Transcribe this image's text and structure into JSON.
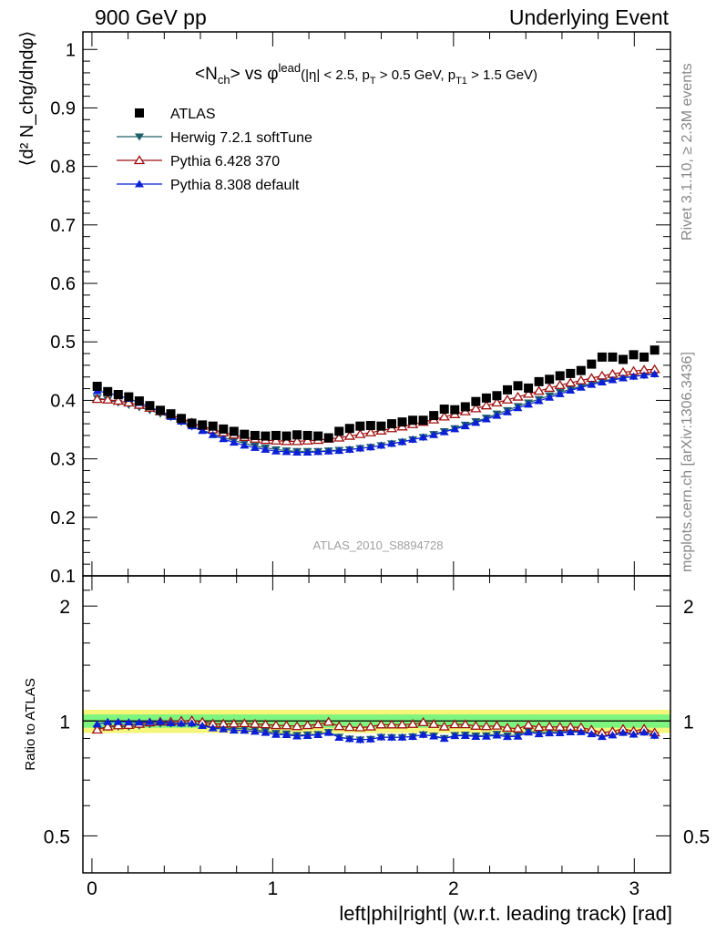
{
  "header": {
    "left": "900 GeV pp",
    "right": "Underlying Event"
  },
  "side_labels": {
    "rivet": "Rivet 3.1.10, ≥ 2.3M events",
    "mcplots": "mcplots.cern.ch [arXiv:1306.3436]"
  },
  "watermark": "ATLAS_2010_S8894728",
  "title": {
    "main": "<N",
    "sub_ch": "ch",
    "vs": "> vs φ",
    "sup_lead": "lead",
    "cuts": "(|η| < 2.5, p",
    "sub_T": "T",
    "cuts2": " > 0.5 GeV, p",
    "sub_T1": "T1",
    "cuts3": " > 1.5 GeV)"
  },
  "ylabel_main": "⟨d² N_chg/dηdφ⟩",
  "ylabel_ratio": "Ratio to ATLAS",
  "xlabel": "left|phi|right| (w.r.t. leading track) [rad]",
  "colors": {
    "atlas": "#000000",
    "herwig": "#1f5f6a",
    "pythia6": "#a01010",
    "pythia8": "#0a1fd6",
    "band_inner": "#7ef57e",
    "band_outer": "#f5f57a"
  },
  "chart_data": [
    {
      "type": "scatter",
      "panel": "main",
      "xlim": [
        -0.05,
        3.2
      ],
      "ylim": [
        0.1,
        1.03
      ],
      "yticks": [
        0.1,
        0.2,
        0.3,
        0.4,
        0.5,
        0.6,
        0.7,
        0.8,
        0.9,
        1
      ],
      "ytick_labels": [
        "0.1",
        "0.2",
        "0.3",
        "0.4",
        "0.5",
        "0.6",
        "0.7",
        "0.8",
        "0.9",
        "1"
      ],
      "legend": "top-left",
      "series": [
        {
          "name": "ATLAS",
          "marker": "square",
          "values": [
            0.424,
            0.415,
            0.41,
            0.406,
            0.399,
            0.391,
            0.383,
            0.377,
            0.369,
            0.361,
            0.358,
            0.356,
            0.351,
            0.347,
            0.342,
            0.34,
            0.339,
            0.34,
            0.339,
            0.341,
            0.34,
            0.339,
            0.336,
            0.347,
            0.352,
            0.356,
            0.357,
            0.356,
            0.36,
            0.363,
            0.366,
            0.366,
            0.374,
            0.385,
            0.384,
            0.389,
            0.398,
            0.404,
            0.408,
            0.418,
            0.425,
            0.421,
            0.432,
            0.436,
            0.442,
            0.446,
            0.451,
            0.462,
            0.474,
            0.474,
            0.47,
            0.478,
            0.474,
            0.486
          ]
        },
        {
          "name": "Herwig 7.2.1 softTune",
          "marker": "triangle-down",
          "values": [
            0.404,
            0.401,
            0.396,
            0.392,
            0.388,
            0.383,
            0.377,
            0.371,
            0.363,
            0.355,
            0.349,
            0.343,
            0.337,
            0.331,
            0.327,
            0.322,
            0.319,
            0.316,
            0.314,
            0.313,
            0.313,
            0.313,
            0.314,
            0.315,
            0.316,
            0.318,
            0.32,
            0.323,
            0.326,
            0.329,
            0.333,
            0.337,
            0.342,
            0.347,
            0.352,
            0.358,
            0.364,
            0.37,
            0.377,
            0.383,
            0.39,
            0.396,
            0.402,
            0.408,
            0.414,
            0.419,
            0.424,
            0.429,
            0.433,
            0.436,
            0.439,
            0.441,
            0.443,
            0.445
          ]
        },
        {
          "name": "Pythia 6.428 370",
          "marker": "triangle-up-open",
          "values": [
            0.402,
            0.401,
            0.399,
            0.396,
            0.392,
            0.387,
            0.381,
            0.375,
            0.369,
            0.362,
            0.356,
            0.35,
            0.345,
            0.341,
            0.337,
            0.334,
            0.332,
            0.331,
            0.33,
            0.33,
            0.331,
            0.332,
            0.334,
            0.336,
            0.339,
            0.342,
            0.345,
            0.348,
            0.352,
            0.355,
            0.359,
            0.363,
            0.367,
            0.372,
            0.376,
            0.381,
            0.386,
            0.391,
            0.396,
            0.401,
            0.406,
            0.411,
            0.416,
            0.421,
            0.426,
            0.43,
            0.434,
            0.438,
            0.442,
            0.445,
            0.448,
            0.45,
            0.452,
            0.453
          ]
        },
        {
          "name": "Pythia 8.308 default",
          "marker": "triangle-up",
          "values": [
            0.416,
            0.413,
            0.408,
            0.403,
            0.396,
            0.389,
            0.381,
            0.372,
            0.364,
            0.356,
            0.348,
            0.341,
            0.334,
            0.328,
            0.323,
            0.319,
            0.316,
            0.313,
            0.312,
            0.311,
            0.311,
            0.312,
            0.313,
            0.314,
            0.316,
            0.318,
            0.32,
            0.323,
            0.326,
            0.329,
            0.333,
            0.337,
            0.341,
            0.346,
            0.351,
            0.356,
            0.362,
            0.368,
            0.374,
            0.38,
            0.387,
            0.393,
            0.399,
            0.405,
            0.411,
            0.417,
            0.422,
            0.427,
            0.431,
            0.435,
            0.438,
            0.441,
            0.443,
            0.445
          ]
        }
      ]
    },
    {
      "type": "scatter",
      "panel": "ratio",
      "xlim": [
        -0.05,
        3.2
      ],
      "ylim": [
        0.4,
        2.4
      ],
      "log_y": true,
      "yticks": [
        0.5,
        1,
        2
      ],
      "ytick_labels": [
        "0.5",
        "1",
        "2"
      ],
      "xticks": [
        0,
        1,
        2,
        3
      ],
      "xtick_labels": [
        "0",
        "1",
        "2",
        "3"
      ],
      "band_inner": [
        0.96,
        1.04
      ],
      "band_outer": [
        0.93,
        1.07
      ],
      "series": [
        {
          "name": "Herwig 7.2.1 softTune",
          "values": [
            0.953,
            0.966,
            0.966,
            0.966,
            0.972,
            0.98,
            0.984,
            0.984,
            0.984,
            0.983,
            0.975,
            0.963,
            0.96,
            0.954,
            0.956,
            0.947,
            0.941,
            0.929,
            0.926,
            0.918,
            0.921,
            0.923,
            0.935,
            0.908,
            0.898,
            0.893,
            0.896,
            0.907,
            0.906,
            0.906,
            0.91,
            0.921,
            0.914,
            0.901,
            0.917,
            0.92,
            0.915,
            0.916,
            0.924,
            0.916,
            0.918,
            0.941,
            0.931,
            0.936,
            0.937,
            0.939,
            0.94,
            0.929,
            0.914,
            0.92,
            0.934,
            0.923,
            0.935,
            0.916
          ]
        },
        {
          "name": "Pythia 6.428 370",
          "values": [
            0.948,
            0.966,
            0.973,
            0.975,
            0.982,
            0.99,
            0.995,
            0.995,
            1.0,
            1.003,
            0.994,
            0.983,
            0.983,
            0.983,
            0.985,
            0.982,
            0.979,
            0.974,
            0.973,
            0.968,
            0.974,
            0.979,
            0.994,
            0.968,
            0.963,
            0.961,
            0.966,
            0.978,
            0.978,
            0.978,
            0.981,
            0.992,
            0.981,
            0.966,
            0.979,
            0.979,
            0.97,
            0.968,
            0.971,
            0.959,
            0.955,
            0.976,
            0.963,
            0.966,
            0.964,
            0.964,
            0.962,
            0.948,
            0.932,
            0.939,
            0.953,
            0.941,
            0.954,
            0.932
          ]
        },
        {
          "name": "Pythia 8.308 default",
          "values": [
            0.981,
            0.995,
            0.995,
            0.993,
            0.992,
            0.995,
            0.995,
            0.987,
            0.986,
            0.986,
            0.972,
            0.958,
            0.952,
            0.945,
            0.944,
            0.938,
            0.932,
            0.921,
            0.92,
            0.912,
            0.915,
            0.92,
            0.932,
            0.905,
            0.898,
            0.893,
            0.896,
            0.907,
            0.906,
            0.906,
            0.91,
            0.921,
            0.912,
            0.899,
            0.914,
            0.915,
            0.91,
            0.911,
            0.917,
            0.909,
            0.911,
            0.934,
            0.924,
            0.929,
            0.93,
            0.935,
            0.936,
            0.924,
            0.909,
            0.918,
            0.932,
            0.922,
            0.934,
            0.916
          ]
        }
      ]
    }
  ]
}
